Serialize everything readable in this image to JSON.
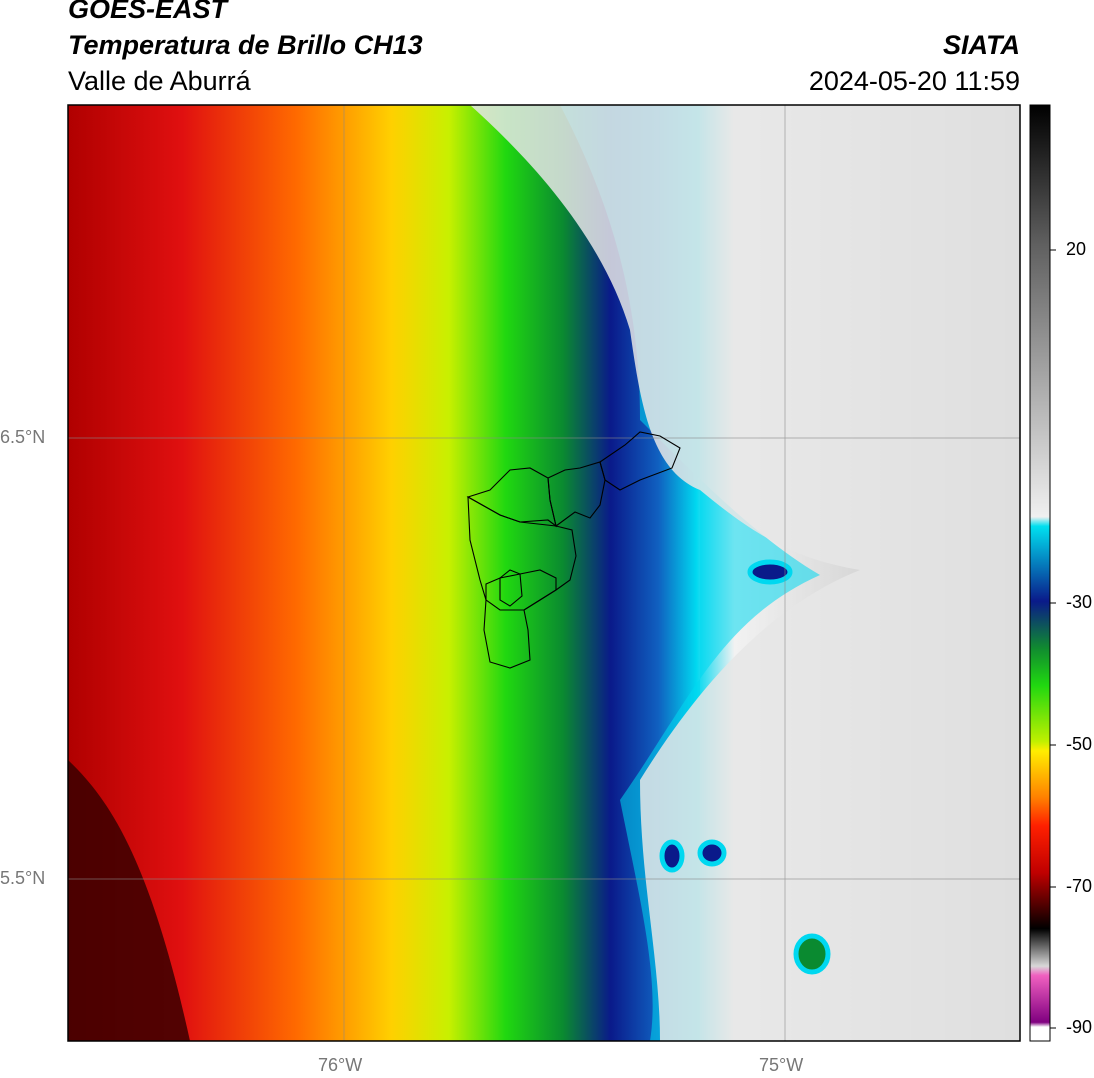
{
  "header": {
    "satellite": "GOES-EAST",
    "product": "Temperatura de Brillo CH13",
    "region": "Valle de Aburrá",
    "agency": "SIATA",
    "datetime": "2024-05-20 11:59"
  },
  "axes": {
    "lat_ticks": [
      "6.5°N",
      "5.5°N"
    ],
    "lon_ticks": [
      "76°W",
      "75°W"
    ]
  },
  "colorbar": {
    "ticks": [
      "20",
      "-30",
      "-50",
      "-70",
      "-90"
    ]
  },
  "colors": {
    "red": "#e01010",
    "yellow": "#ffee00",
    "green": "#20d810",
    "navy": "#0a1a8a",
    "cyan": "#00d8f0",
    "gray": "#c8c8c8"
  }
}
